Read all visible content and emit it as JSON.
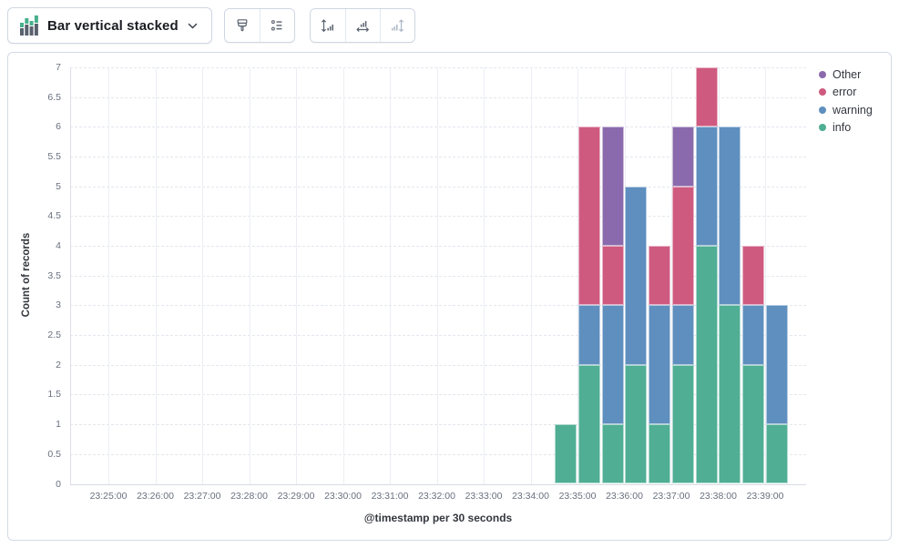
{
  "toolbar": {
    "chart_type_selector": {
      "label": "Bar vertical stacked",
      "icon": "bar-vertical-stacked-icon",
      "chevron_icon": "chevron-down-icon"
    },
    "style_group": [
      {
        "name": "visual-options-button",
        "icon": "brush-icon",
        "disabled": false
      },
      {
        "name": "legend-settings-button",
        "icon": "list-icon",
        "disabled": false
      }
    ],
    "axis_group": [
      {
        "name": "left-axis-button",
        "icon": "axis-left-icon",
        "disabled": false
      },
      {
        "name": "bottom-axis-button",
        "icon": "axis-bottom-icon",
        "disabled": false
      },
      {
        "name": "right-axis-button",
        "icon": "axis-right-icon",
        "disabled": true
      }
    ]
  },
  "colors": {
    "info": "#4FAE93",
    "warning": "#5E8FBE",
    "error": "#CF5A80",
    "other": "#8A6AAC",
    "icon_green": "#46B08C",
    "icon_gray": "#59616E",
    "panel_border": "#D3DAE6"
  },
  "legend": {
    "items": [
      {
        "label": "Other",
        "color": "#8A6AAC"
      },
      {
        "label": "error",
        "color": "#CF5A80"
      },
      {
        "label": "warning",
        "color": "#5E8FBE"
      },
      {
        "label": "info",
        "color": "#4FAE93"
      }
    ]
  },
  "chart_data": {
    "type": "bar",
    "orientation": "vertical",
    "stacked": true,
    "title": "",
    "xlabel": "@timestamp per 30 seconds",
    "ylabel": "Count of records",
    "ylim": [
      0,
      7
    ],
    "ytick_step": 0.5,
    "grid": true,
    "legend_position": "right",
    "bucket_seconds": 30,
    "xticks": [
      "23:25:00",
      "23:26:00",
      "23:27:00",
      "23:28:00",
      "23:29:00",
      "23:30:00",
      "23:31:00",
      "23:32:00",
      "23:33:00",
      "23:34:00",
      "23:35:00",
      "23:36:00",
      "23:37:00",
      "23:38:00",
      "23:39:00"
    ],
    "categories": [
      "23:34:30",
      "23:35:00",
      "23:35:30",
      "23:36:00",
      "23:36:30",
      "23:37:00",
      "23:37:30",
      "23:38:00",
      "23:38:30",
      "23:39:00"
    ],
    "series": [
      {
        "name": "info",
        "color": "#4FAE93",
        "values": [
          1,
          2,
          1,
          2,
          1,
          2,
          4,
          3,
          2,
          1
        ]
      },
      {
        "name": "warning",
        "color": "#5E8FBE",
        "values": [
          0,
          1,
          2,
          3,
          2,
          1,
          2,
          3,
          1,
          2
        ]
      },
      {
        "name": "error",
        "color": "#CF5A80",
        "values": [
          0,
          3,
          1,
          0,
          1,
          2,
          1,
          0,
          1,
          0
        ]
      },
      {
        "name": "Other",
        "color": "#8A6AAC",
        "values": [
          0,
          0,
          2,
          0,
          0,
          1,
          0,
          0,
          0,
          0
        ]
      }
    ]
  }
}
